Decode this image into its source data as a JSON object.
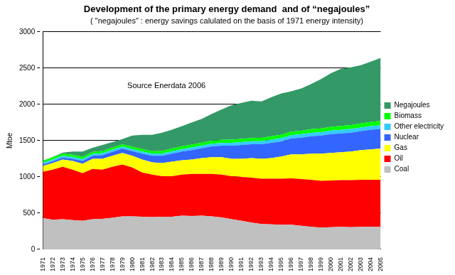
{
  "chart_data": {
    "type": "area",
    "title": "Development of the primary energy demand  and of “negajoules”",
    "subtitle": "( \"negajoules\" : energy savings calulated on the basis of 1971 energy intensity)",
    "y_label": "Mtoe",
    "annotation": "Source Enerdata 2006",
    "categories": [
      "1971",
      "1972",
      "1973",
      "1974",
      "1975",
      "1976",
      "1977",
      "1978",
      "1979",
      "1980",
      "1981",
      "1982",
      "1983",
      "1984",
      "1985",
      "1986",
      "1987",
      "1988",
      "1989",
      "1990",
      "1991",
      "1992",
      "1993",
      "1994",
      "1995",
      "1996",
      "1997",
      "1998",
      "1999",
      "2000",
      "2001",
      "2002",
      "2003",
      "2004",
      "2005"
    ],
    "series": [
      {
        "name": "Coal",
        "color": "#c0c0c0",
        "values": [
          430,
          410,
          415,
          405,
          395,
          415,
          420,
          435,
          455,
          455,
          450,
          445,
          450,
          450,
          465,
          460,
          465,
          455,
          440,
          415,
          395,
          370,
          350,
          345,
          340,
          340,
          325,
          310,
          300,
          305,
          310,
          305,
          310,
          310,
          310
        ]
      },
      {
        "name": "Oil",
        "color": "#ff0000",
        "values": [
          640,
          690,
          725,
          695,
          655,
          695,
          680,
          705,
          715,
          675,
          610,
          585,
          560,
          560,
          565,
          580,
          575,
          585,
          590,
          595,
          605,
          620,
          625,
          630,
          635,
          640,
          645,
          650,
          645,
          645,
          645,
          650,
          650,
          650,
          650
        ]
      },
      {
        "name": "Gas",
        "color": "#ffff00",
        "values": [
          80,
          90,
          100,
          120,
          130,
          140,
          150,
          150,
          160,
          160,
          180,
          170,
          180,
          200,
          200,
          200,
          220,
          230,
          240,
          240,
          250,
          270,
          275,
          285,
          305,
          330,
          340,
          360,
          375,
          380,
          385,
          395,
          410,
          420,
          430
        ]
      },
      {
        "name": "Nuclear",
        "color": "#3366ff",
        "values": [
          20,
          25,
          25,
          30,
          40,
          40,
          50,
          55,
          60,
          65,
          80,
          90,
          100,
          110,
          120,
          130,
          135,
          150,
          160,
          180,
          190,
          190,
          200,
          210,
          210,
          220,
          230,
          240,
          250,
          260,
          260,
          260,
          260,
          270,
          270
        ]
      },
      {
        "name": "Other electricity",
        "color": "#33ccff",
        "values": [
          25,
          25,
          25,
          25,
          25,
          25,
          27,
          28,
          28,
          28,
          30,
          30,
          32,
          33,
          34,
          35,
          36,
          37,
          38,
          40,
          40,
          41,
          42,
          43,
          44,
          45,
          46,
          46,
          47,
          48,
          49,
          50,
          50,
          51,
          52
        ]
      },
      {
        "name": "Biomass",
        "color": "#00ff00",
        "values": [
          30,
          30,
          30,
          30,
          30,
          30,
          30,
          31,
          32,
          33,
          34,
          35,
          36,
          37,
          38,
          39,
          40,
          41,
          42,
          43,
          44,
          45,
          46,
          47,
          48,
          49,
          50,
          51,
          52,
          53,
          54,
          55,
          56,
          57,
          58
        ]
      },
      {
        "name": "Negajoules",
        "color": "#339966",
        "values": [
          0,
          5,
          15,
          45,
          75,
          55,
          83,
          76,
          70,
          154,
          196,
          225,
          252,
          260,
          278,
          306,
          329,
          372,
          420,
          477,
          496,
          514,
          502,
          540,
          568,
          556,
          584,
          623,
          681,
          739,
          787,
          795,
          804,
          832,
          870
        ]
      }
    ],
    "stacked": true,
    "ylim": [
      0,
      3000
    ],
    "yticks": [
      0,
      500,
      1000,
      1500,
      2000,
      2500,
      3000
    ],
    "grid": true,
    "legend": "right"
  }
}
